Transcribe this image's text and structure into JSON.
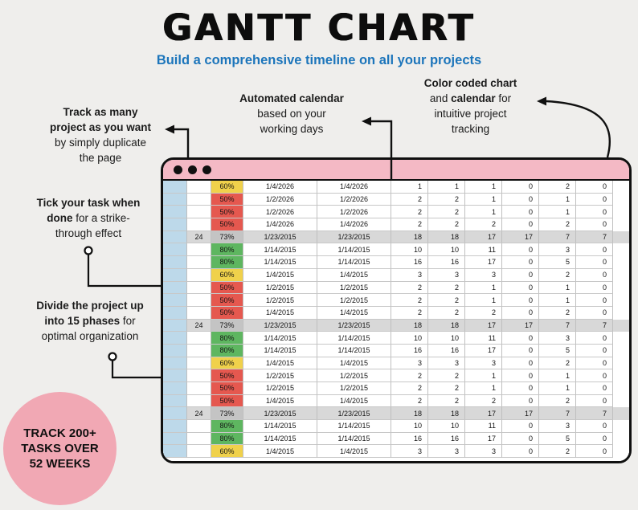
{
  "title": "GANTT CHART",
  "subtitle": "Build a comprehensive timeline on all your projects",
  "annotations": {
    "track_many": {
      "lines": [
        {
          "b": "Track as many"
        },
        {
          "b": "project as you want"
        },
        {
          "post": "by simply duplicate"
        },
        {
          "post": "the page"
        }
      ]
    },
    "automated": {
      "lines": [
        {
          "b": "Automated calendar"
        },
        {
          "post": "based on your"
        },
        {
          "post": "working days"
        }
      ]
    },
    "color_coded": {
      "lines": [
        {
          "b": "Color coded chart"
        },
        {
          "pre": "and ",
          "b": "calendar",
          "post": " for"
        },
        {
          "post": "intuitive project"
        },
        {
          "post": "tracking"
        }
      ]
    },
    "tick": {
      "lines": [
        {
          "b": "Tick your task when"
        },
        {
          "b": "done",
          "post": " for a strike-"
        },
        {
          "post": "through effect"
        }
      ]
    },
    "divide": {
      "lines": [
        {
          "b": "Divide the project up"
        },
        {
          "b": "into 15 phases",
          "post": " for"
        },
        {
          "post": "optimal organization"
        }
      ]
    }
  },
  "badge": {
    "lines": [
      "TRACK 200+",
      "TASKS OVER",
      "52 WEEKS"
    ]
  },
  "colors": {
    "subtitle_blue": "#1c75bb",
    "titlebar_pink": "#f4b9c5",
    "badge_pink": "#f1a8b4",
    "check_column_blue": "#bdd9ea",
    "gray_row": "#d8d8d8",
    "levels": {
      "yellow": "#f0d14b",
      "red": "#e5584f",
      "green": "#5eb660",
      "gray": "#c4c4c4"
    }
  },
  "table": {
    "rows": [
      {
        "group": "",
        "level": "yellow",
        "pct": "60%",
        "start": "1/4/2026",
        "end": "1/4/2026",
        "vals": [
          "1",
          "1",
          "1",
          "0",
          "2",
          "0"
        ]
      },
      {
        "group": "",
        "level": "red",
        "pct": "50%",
        "start": "1/2/2026",
        "end": "1/2/2026",
        "vals": [
          "2",
          "2",
          "1",
          "0",
          "1",
          "0"
        ]
      },
      {
        "group": "",
        "level": "red",
        "pct": "50%",
        "start": "1/2/2026",
        "end": "1/2/2026",
        "vals": [
          "2",
          "2",
          "1",
          "0",
          "1",
          "0"
        ]
      },
      {
        "group": "",
        "level": "red",
        "pct": "50%",
        "start": "1/4/2026",
        "end": "1/4/2026",
        "vals": [
          "2",
          "2",
          "2",
          "0",
          "2",
          "0"
        ]
      },
      {
        "group": "24",
        "level": "gray",
        "pct": "73%",
        "start": "1/23/2015",
        "end": "1/23/2015",
        "vals": [
          "18",
          "18",
          "17",
          "17",
          "7",
          "7"
        ]
      },
      {
        "group": "",
        "level": "green",
        "pct": "80%",
        "start": "1/14/2015",
        "end": "1/14/2015",
        "vals": [
          "10",
          "10",
          "11",
          "0",
          "3",
          "0"
        ]
      },
      {
        "group": "",
        "level": "green",
        "pct": "80%",
        "start": "1/14/2015",
        "end": "1/14/2015",
        "vals": [
          "16",
          "16",
          "17",
          "0",
          "5",
          "0"
        ]
      },
      {
        "group": "",
        "level": "yellow",
        "pct": "60%",
        "start": "1/4/2015",
        "end": "1/4/2015",
        "vals": [
          "3",
          "3",
          "3",
          "0",
          "2",
          "0"
        ]
      },
      {
        "group": "",
        "level": "red",
        "pct": "50%",
        "start": "1/2/2015",
        "end": "1/2/2015",
        "vals": [
          "2",
          "2",
          "1",
          "0",
          "1",
          "0"
        ]
      },
      {
        "group": "",
        "level": "red",
        "pct": "50%",
        "start": "1/2/2015",
        "end": "1/2/2015",
        "vals": [
          "2",
          "2",
          "1",
          "0",
          "1",
          "0"
        ]
      },
      {
        "group": "",
        "level": "red",
        "pct": "50%",
        "start": "1/4/2015",
        "end": "1/4/2015",
        "vals": [
          "2",
          "2",
          "2",
          "0",
          "2",
          "0"
        ]
      },
      {
        "group": "24",
        "level": "gray",
        "pct": "73%",
        "start": "1/23/2015",
        "end": "1/23/2015",
        "vals": [
          "18",
          "18",
          "17",
          "17",
          "7",
          "7"
        ]
      },
      {
        "group": "",
        "level": "green",
        "pct": "80%",
        "start": "1/14/2015",
        "end": "1/14/2015",
        "vals": [
          "10",
          "10",
          "11",
          "0",
          "3",
          "0"
        ]
      },
      {
        "group": "",
        "level": "green",
        "pct": "80%",
        "start": "1/14/2015",
        "end": "1/14/2015",
        "vals": [
          "16",
          "16",
          "17",
          "0",
          "5",
          "0"
        ]
      },
      {
        "group": "",
        "level": "yellow",
        "pct": "60%",
        "start": "1/4/2015",
        "end": "1/4/2015",
        "vals": [
          "3",
          "3",
          "3",
          "0",
          "2",
          "0"
        ]
      },
      {
        "group": "",
        "level": "red",
        "pct": "50%",
        "start": "1/2/2015",
        "end": "1/2/2015",
        "vals": [
          "2",
          "2",
          "1",
          "0",
          "1",
          "0"
        ]
      },
      {
        "group": "",
        "level": "red",
        "pct": "50%",
        "start": "1/2/2015",
        "end": "1/2/2015",
        "vals": [
          "2",
          "2",
          "1",
          "0",
          "1",
          "0"
        ]
      },
      {
        "group": "",
        "level": "red",
        "pct": "50%",
        "start": "1/4/2015",
        "end": "1/4/2015",
        "vals": [
          "2",
          "2",
          "2",
          "0",
          "2",
          "0"
        ]
      },
      {
        "group": "24",
        "level": "gray",
        "pct": "73%",
        "start": "1/23/2015",
        "end": "1/23/2015",
        "vals": [
          "18",
          "18",
          "17",
          "17",
          "7",
          "7"
        ]
      },
      {
        "group": "",
        "level": "green",
        "pct": "80%",
        "start": "1/14/2015",
        "end": "1/14/2015",
        "vals": [
          "10",
          "10",
          "11",
          "0",
          "3",
          "0"
        ]
      },
      {
        "group": "",
        "level": "green",
        "pct": "80%",
        "start": "1/14/2015",
        "end": "1/14/2015",
        "vals": [
          "16",
          "16",
          "17",
          "0",
          "5",
          "0"
        ]
      },
      {
        "group": "",
        "level": "yellow",
        "pct": "60%",
        "start": "1/4/2015",
        "end": "1/4/2015",
        "vals": [
          "3",
          "3",
          "3",
          "0",
          "2",
          "0"
        ]
      }
    ]
  }
}
